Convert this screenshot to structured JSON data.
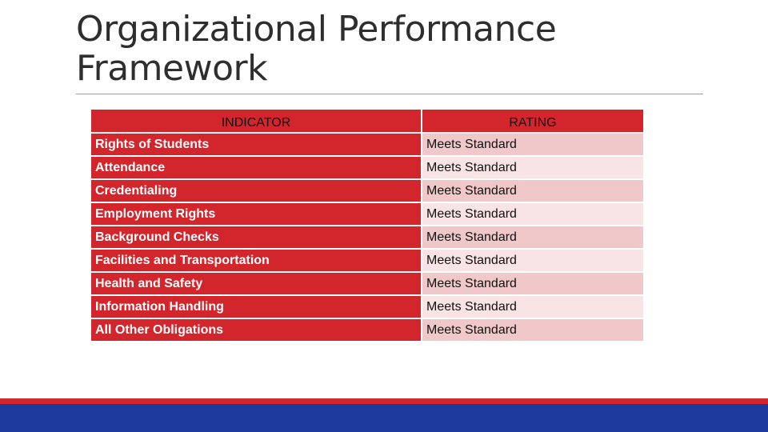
{
  "slide": {
    "title": "Organizational Performance Framework"
  },
  "table": {
    "headers": {
      "indicator": "INDICATOR",
      "rating": "RATING"
    },
    "rows": [
      {
        "indicator": "Rights of  Students",
        "rating": "Meets Standard"
      },
      {
        "indicator": "Attendance",
        "rating": "Meets Standard"
      },
      {
        "indicator": "Credentialing",
        "rating": "Meets Standard"
      },
      {
        "indicator": "Employment Rights",
        "rating": "Meets Standard"
      },
      {
        "indicator": "Background Checks",
        "rating": "Meets Standard"
      },
      {
        "indicator": "Facilities and Transportation",
        "rating": "Meets Standard"
      },
      {
        "indicator": "Health and Safety",
        "rating": "Meets Standard"
      },
      {
        "indicator": "Information Handling",
        "rating": "Meets Standard"
      },
      {
        "indicator": "All Other Obligations",
        "rating": "Meets Standard"
      }
    ]
  },
  "colors": {
    "accent_red": "#d2262c",
    "row_pink_dark": "#f0c8c9",
    "row_pink_light": "#f8e4e4",
    "footer_blue": "#1f3a9f",
    "title_text": "#2e2e2e"
  }
}
